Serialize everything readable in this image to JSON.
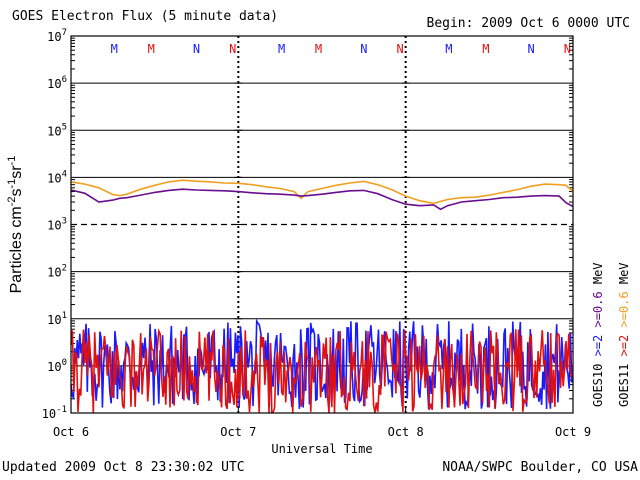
{
  "header": {
    "title": "GOES Electron Flux (5 minute data)",
    "begin": "Begin: 2009 Oct 6 0000 UTC"
  },
  "footer": {
    "updated": "Updated 2009 Oct  8 23:30:02 UTC",
    "credit": "NOAA/SWPC Boulder, CO USA"
  },
  "colors": {
    "goes10_ge2": "#1a1aff",
    "goes10_ge06": "#6a0d91",
    "goes11_ge2": "#e01010",
    "goes11_ge06": "#f0a020",
    "frame": "#000000"
  },
  "chart_data": {
    "type": "line",
    "title": "GOES Electron Flux (5 minute data)",
    "xlabel": "Universal Time",
    "ylabel": "Particles cm-2s-1sr-1",
    "ylabel_display": {
      "base": "Particles cm",
      "sup1": "-2",
      "mid1": "s",
      "sup2": "-1",
      "mid2": "sr",
      "sup3": "-1"
    },
    "yscale": "log",
    "ylim": [
      0.1,
      10000000
    ],
    "y_ticks": [
      {
        "base": "10",
        "exp": "-1",
        "value": 0.1
      },
      {
        "base": "10",
        "exp": "0",
        "value": 1
      },
      {
        "base": "10",
        "exp": "1",
        "value": 10
      },
      {
        "base": "10",
        "exp": "2",
        "value": 100
      },
      {
        "base": "10",
        "exp": "3",
        "value": 1000
      },
      {
        "base": "10",
        "exp": "4",
        "value": 10000
      },
      {
        "base": "10",
        "exp": "5",
        "value": 100000
      },
      {
        "base": "10",
        "exp": "6",
        "value": 1000000
      },
      {
        "base": "10",
        "exp": "7",
        "value": 10000000
      }
    ],
    "xlim_hours": [
      0,
      72
    ],
    "x_ticks": [
      {
        "label": "Oct 6",
        "hour": 0
      },
      {
        "label": "Oct 7",
        "hour": 24
      },
      {
        "label": "Oct 8",
        "hour": 48
      },
      {
        "label": "Oct 9",
        "hour": 72
      }
    ],
    "dashed_threshold": 1000,
    "local_time_markers": [
      {
        "label": "M",
        "satellite": "GOES10",
        "hour": 6.2
      },
      {
        "label": "M",
        "satellite": "GOES11",
        "hour": 11.5
      },
      {
        "label": "N",
        "satellite": "GOES10",
        "hour": 18.0
      },
      {
        "label": "N",
        "satellite": "GOES11",
        "hour": 23.2
      },
      {
        "label": "M",
        "satellite": "GOES10",
        "hour": 30.2
      },
      {
        "label": "M",
        "satellite": "GOES11",
        "hour": 35.5
      },
      {
        "label": "N",
        "satellite": "GOES10",
        "hour": 42.0
      },
      {
        "label": "N",
        "satellite": "GOES11",
        "hour": 47.2
      },
      {
        "label": "M",
        "satellite": "GOES10",
        "hour": 54.2
      },
      {
        "label": "M",
        "satellite": "GOES11",
        "hour": 59.5
      },
      {
        "label": "N",
        "satellite": "GOES10",
        "hour": 66.0
      },
      {
        "label": "N",
        "satellite": "GOES11",
        "hour": 71.2
      }
    ],
    "legend": {
      "position": "right",
      "goes10": {
        "name": "GOES10",
        "ge2": ">=2",
        "ge06": ">=0.6"
      },
      "goes11": {
        "name": "GOES11",
        "ge2": ">=2",
        "ge06": ">=0.6"
      },
      "unit": "MeV"
    },
    "series": [
      {
        "name": "GOES11 >=0.6 MeV",
        "hours": [
          0,
          2,
          4,
          6,
          7,
          8,
          10,
          12,
          14,
          16,
          18,
          20,
          22,
          24,
          26,
          28,
          30,
          32,
          33,
          34,
          36,
          38,
          40,
          42,
          44,
          46,
          48,
          50,
          52,
          54,
          56,
          58,
          60,
          62,
          64,
          66,
          68,
          70,
          71,
          72
        ],
        "values": [
          8000,
          7200,
          6000,
          4300,
          4100,
          4400,
          5600,
          6800,
          8000,
          8700,
          8300,
          8000,
          7600,
          7500,
          7000,
          6300,
          5800,
          5000,
          3600,
          5000,
          5800,
          6800,
          7600,
          8200,
          7000,
          5500,
          4000,
          3200,
          2800,
          3400,
          3700,
          3800,
          4200,
          4800,
          5500,
          6500,
          7200,
          7000,
          6800,
          5000
        ]
      },
      {
        "name": "GOES10 >=0.6 MeV",
        "hours": [
          0,
          2,
          4,
          6,
          7,
          8,
          10,
          12,
          14,
          16,
          18,
          20,
          22,
          24,
          26,
          28,
          30,
          32,
          33,
          34,
          36,
          38,
          40,
          42,
          44,
          46,
          48,
          50,
          52,
          53,
          54,
          56,
          58,
          60,
          62,
          64,
          66,
          68,
          70,
          71,
          72
        ],
        "values": [
          5400,
          4600,
          3000,
          3300,
          3600,
          3700,
          4200,
          4800,
          5300,
          5600,
          5400,
          5300,
          5200,
          5000,
          4700,
          4500,
          4400,
          4200,
          4000,
          4100,
          4400,
          4800,
          5200,
          5300,
          4500,
          3400,
          2700,
          2500,
          2600,
          2100,
          2500,
          3000,
          3200,
          3400,
          3700,
          3800,
          4000,
          4100,
          4000,
          2900,
          2400
        ]
      },
      {
        "name": "GOES10 >=2 MeV",
        "hours": [
          0,
          72
        ],
        "values": [
          0.2,
          8
        ],
        "note": "noise-level flux fluctuating between ~0.1 and ~10 across the full interval"
      },
      {
        "name": "GOES11 >=2 MeV",
        "hours": [
          0,
          72
        ],
        "values": [
          0.1,
          5
        ],
        "note": "noise-level flux fluctuating between ~0.1 and ~5 across the full interval"
      }
    ]
  }
}
